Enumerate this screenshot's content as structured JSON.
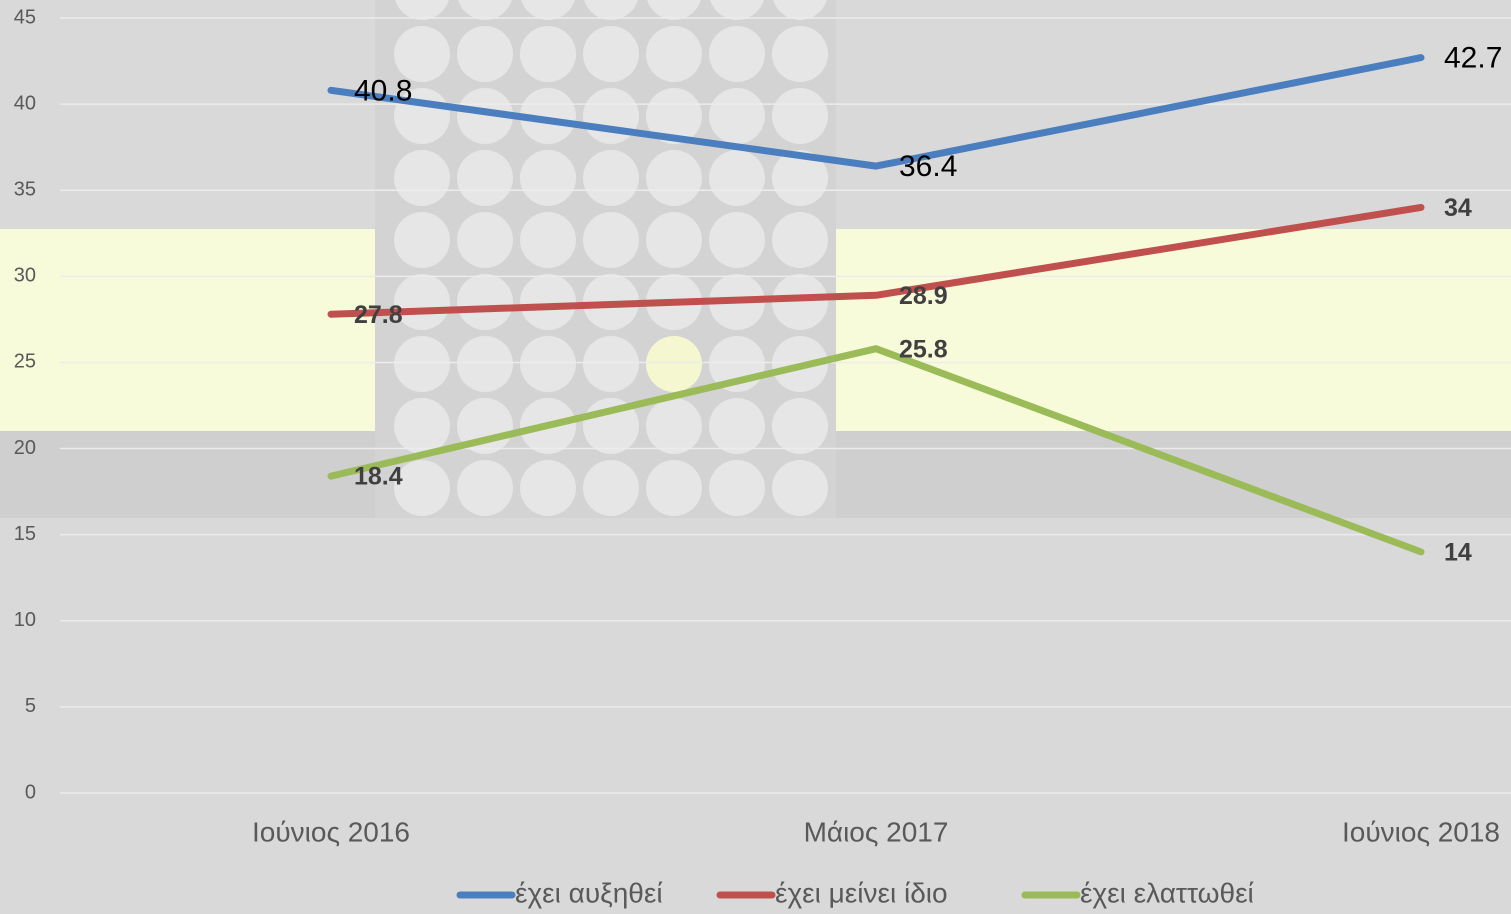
{
  "chart_data": {
    "type": "line",
    "categories": [
      "Ιούνιος 2016",
      "Μάιος 2017",
      "Ιούνιος 2018"
    ],
    "series": [
      {
        "name": "έχει αυξηθεί",
        "color": "#4a7ebf",
        "values": [
          40.8,
          36.4,
          42.7
        ]
      },
      {
        "name": "έχει μείνει ίδιο",
        "color": "#c0504d",
        "values": [
          27.8,
          28.9,
          34
        ]
      },
      {
        "name": "έχει ελαττωθεί",
        "color": "#9bbb59",
        "values": [
          18.4,
          25.8,
          14
        ]
      }
    ],
    "ylim": [
      0,
      45
    ],
    "yticks": [
      0,
      5,
      10,
      15,
      20,
      25,
      30,
      35,
      40,
      45
    ],
    "grid": true,
    "legend": "bottom"
  }
}
